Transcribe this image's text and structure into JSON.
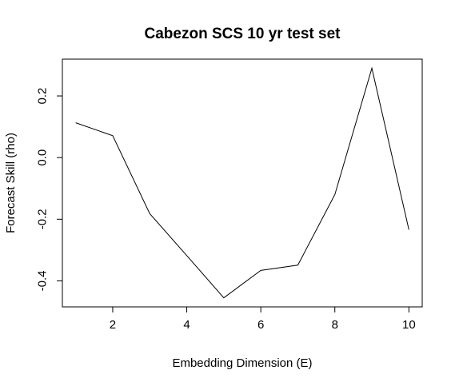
{
  "chart_data": {
    "type": "line",
    "title": "Cabezon SCS 10 yr test set",
    "xlabel": "Embedding Dimension (E)",
    "ylabel": "Forecast Skill (rho)",
    "x": [
      1,
      2,
      3,
      4,
      5,
      6,
      7,
      8,
      9,
      10
    ],
    "series": [
      {
        "values": [
          0.113,
          0.071,
          -0.182,
          -0.318,
          -0.455,
          -0.366,
          -0.349,
          -0.12,
          0.29,
          -0.234
        ]
      }
    ],
    "xlim": [
      0.64,
      10.36
    ],
    "ylim": [
      -0.4844,
      0.3194
    ],
    "xticks": [
      2,
      4,
      6,
      8,
      10
    ],
    "xtick_labels": [
      "2",
      "4",
      "6",
      "8",
      "10"
    ],
    "yticks": [
      -0.4,
      -0.2,
      0.0,
      0.2
    ],
    "ytick_labels": [
      "-0.4",
      "-0.2",
      "0.0",
      "0.2"
    ],
    "grid": false,
    "line_color": "#000000",
    "background": "#ffffff"
  }
}
